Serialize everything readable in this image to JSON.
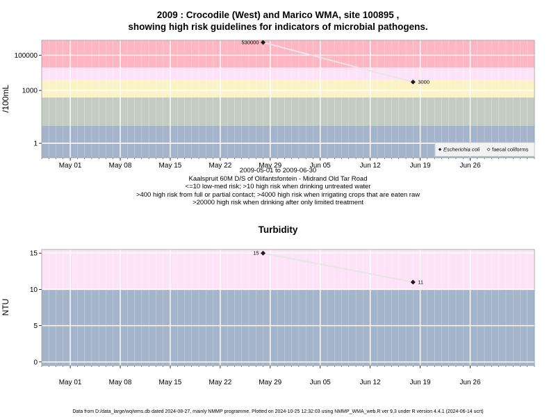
{
  "chart_data": [
    {
      "type": "line",
      "title_line1": "2009 : Crocodile (West) and Marico WMA, site 100895 ,",
      "title_line2": "showing high risk guidelines for indicators of microbial pathogens.",
      "ylabel": "/100mL",
      "yscale": "log10",
      "ylim": [
        0.15,
        700000
      ],
      "yticks": [
        1,
        1000,
        100000
      ],
      "ytick_labels": [
        "1",
        "1000",
        "100000"
      ],
      "xlim": [
        "2009-04-27",
        "2009-07-05"
      ],
      "xticks": [
        "2009-05-01",
        "2009-05-08",
        "2009-05-15",
        "2009-05-22",
        "2009-05-29",
        "2009-06-05",
        "2009-06-12",
        "2009-06-19",
        "2009-06-26"
      ],
      "xtick_labels": [
        "May 01",
        "May 08",
        "May 15",
        "May 22",
        "May 29",
        "Jun 05",
        "Jun 12",
        "Jun 19",
        "Jun 26"
      ],
      "bands": [
        {
          "from": 0.15,
          "to": 10,
          "color": "#a3b4cb"
        },
        {
          "from": 10,
          "to": 400,
          "color": "#c2cdc1"
        },
        {
          "from": 400,
          "to": 4000,
          "color": "#fbf2c6"
        },
        {
          "from": 4000,
          "to": 20000,
          "color": "#fde3f8"
        },
        {
          "from": 20000,
          "to": 700000,
          "color": "#feb7c2"
        }
      ],
      "series": [
        {
          "name": "Escherichia coli",
          "marker": "filled-diamond",
          "x": [
            "2009-05-28",
            "2009-06-18"
          ],
          "values": [
            530000,
            3000
          ],
          "labels": [
            "530000",
            "3000"
          ]
        }
      ],
      "legend": {
        "position": "bottom-right",
        "entries": [
          "Escherichia coli",
          "faecal coliforms"
        ]
      },
      "caption": [
        "2009-05-01 to 2009-06-30",
        "Kaalspruit 60M D/S of Olifantsfontein - Midrand Old Tar Road",
        "<=10 low-med risk; >10 high risk when drinking untreated water",
        ">400 high risk from full or partial contact; >4000 high risk when irrigating crops that are eaten raw",
        ">20000 high risk when drinking after only limited treatment"
      ],
      "grid": true
    },
    {
      "type": "line",
      "title": "Turbidity",
      "ylabel": "NTU",
      "yscale": "linear",
      "ylim": [
        -0.5,
        15.5
      ],
      "yticks": [
        0,
        5,
        10,
        15
      ],
      "ytick_labels": [
        "0",
        "5",
        "10",
        "15"
      ],
      "xlim": [
        "2009-04-27",
        "2009-07-05"
      ],
      "xticks": [
        "2009-05-01",
        "2009-05-08",
        "2009-05-15",
        "2009-05-22",
        "2009-05-29",
        "2009-06-05",
        "2009-06-12",
        "2009-06-19",
        "2009-06-26"
      ],
      "xtick_labels": [
        "May 01",
        "May 08",
        "May 15",
        "May 22",
        "May 29",
        "Jun 05",
        "Jun 12",
        "Jun 19",
        "Jun 26"
      ],
      "bands": [
        {
          "from": -0.5,
          "to": 10,
          "color": "#a3b4cb"
        },
        {
          "from": 10,
          "to": 15.5,
          "color": "#fde3f8"
        }
      ],
      "series": [
        {
          "marker": "filled-diamond",
          "x": [
            "2009-05-28",
            "2009-06-18"
          ],
          "values": [
            15,
            11
          ],
          "labels": [
            "15",
            "11"
          ]
        }
      ],
      "grid": true
    }
  ],
  "footer": "Data from D:/data_large/wq/wms.db dated 2024-08-27, mainly NMMP programme. Plotted on 2024-10-25 12:32:03 using NMMP_WMA_web.R ver 9.3 under R version 4.4.1 (2024-06-14 ucrt)"
}
